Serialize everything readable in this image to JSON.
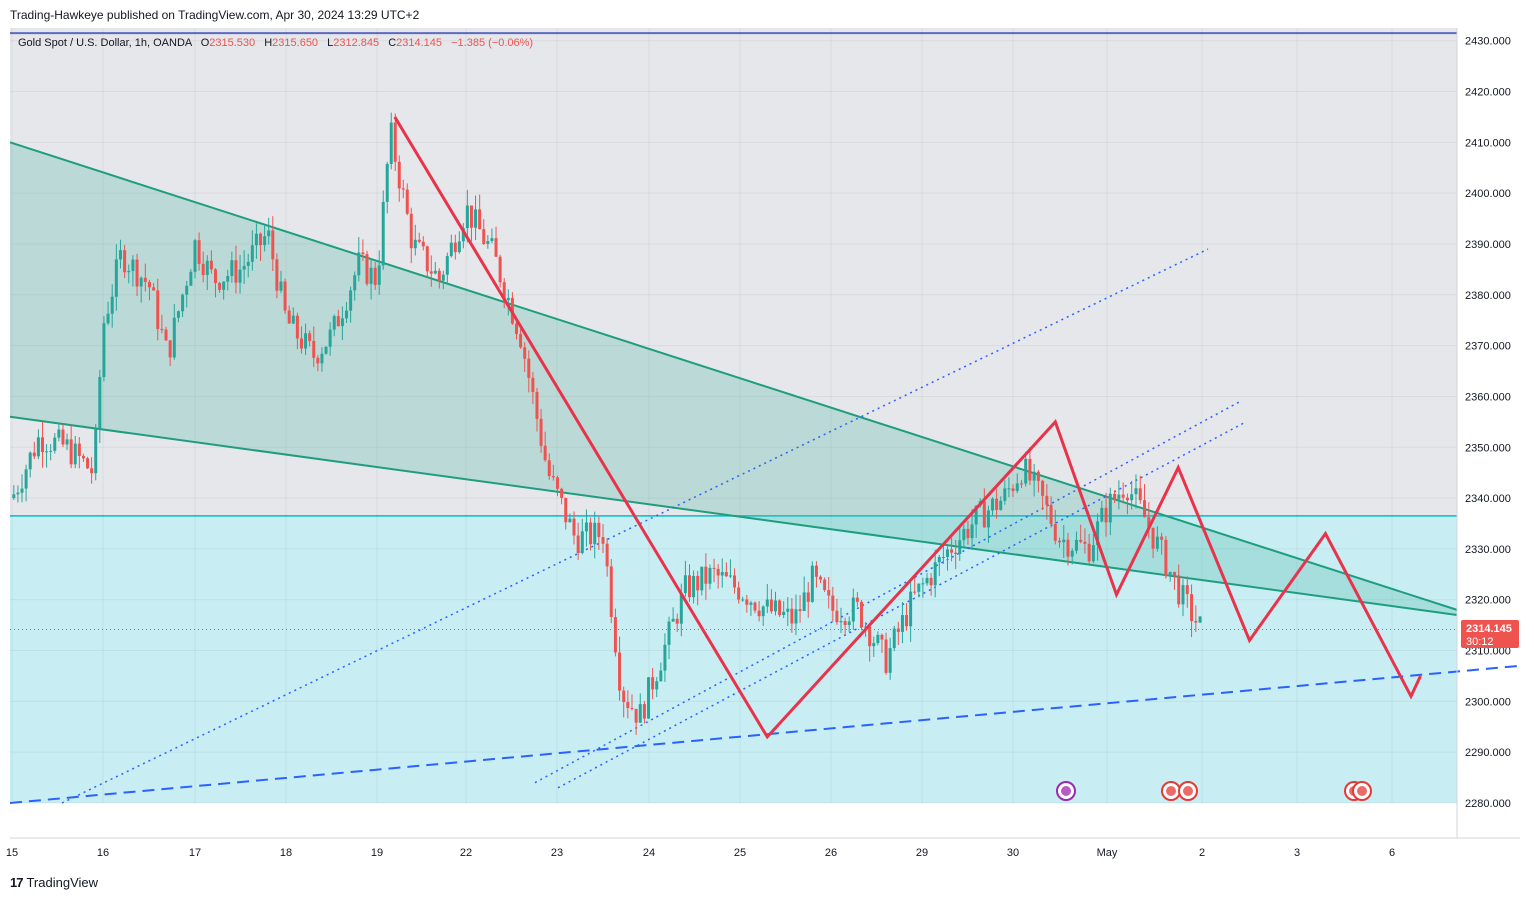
{
  "publisher_line": "Trading-Hawkeye published on TradingView.com, Apr 30, 2024 13:29 UTC+2",
  "brand": "TradingView",
  "symbol_line": {
    "symbol": "Gold Spot / U.S. Dollar, 1h, OANDA",
    "open_label": "O",
    "open": "2315.530",
    "high_label": "H",
    "high": "2315.650",
    "low_label": "L",
    "low": "2312.845",
    "close_label": "C",
    "close": "2314.145",
    "change": "−1.385 (−0.06%)"
  },
  "price_badge": {
    "price": "2314.145",
    "countdown": "30:12"
  },
  "colors": {
    "up": "#26a69a",
    "down": "#ef5350",
    "zone_fill": "#c8eef4",
    "zone_line": "#00bcd4",
    "wedge_fill": "#4db6a0",
    "wedge_line": "#1e9e7e",
    "projection": "#e8334a",
    "channel": "#2962ff",
    "background_upper": "#e6e7eb",
    "top_line": "#5c6bc0"
  },
  "chart_data": {
    "type": "candlestick",
    "symbol": "Gold Spot / U.S. Dollar",
    "interval": "1h",
    "ylim": [
      2280,
      2430
    ],
    "y_ticks": [
      "2430.000",
      "2420.000",
      "2410.000",
      "2400.000",
      "2390.000",
      "2380.000",
      "2370.000",
      "2360.000",
      "2350.000",
      "2340.000",
      "2330.000",
      "2320.000",
      "2310.000",
      "2300.000",
      "2290.000",
      "2280.000"
    ],
    "x_ticks": [
      "15",
      "16",
      "17",
      "18",
      "19",
      "22",
      "23",
      "24",
      "25",
      "26",
      "29",
      "30",
      "May",
      "2",
      "3",
      "6"
    ],
    "last_price": 2314.145,
    "support_zone": {
      "from": 2280,
      "to": 2336.5
    },
    "resistance_top_line": 2431.5,
    "price_path": [
      {
        "x": 15.0,
        "y": 2340
      },
      {
        "x": 15.3,
        "y": 2352
      },
      {
        "x": 15.6,
        "y": 2350
      },
      {
        "x": 15.9,
        "y": 2345
      },
      {
        "x": 16.0,
        "y": 2374
      },
      {
        "x": 16.2,
        "y": 2388
      },
      {
        "x": 16.5,
        "y": 2382
      },
      {
        "x": 16.7,
        "y": 2368
      },
      {
        "x": 17.0,
        "y": 2390
      },
      {
        "x": 17.2,
        "y": 2383
      },
      {
        "x": 17.5,
        "y": 2385
      },
      {
        "x": 17.8,
        "y": 2392
      },
      {
        "x": 18.0,
        "y": 2375
      },
      {
        "x": 18.3,
        "y": 2368
      },
      {
        "x": 18.5,
        "y": 2372
      },
      {
        "x": 18.8,
        "y": 2386
      },
      {
        "x": 19.0,
        "y": 2383
      },
      {
        "x": 19.15,
        "y": 2412
      },
      {
        "x": 19.4,
        "y": 2390
      },
      {
        "x": 19.7,
        "y": 2383
      },
      {
        "x": 20.0,
        "y": 2397
      },
      {
        "x": 20.3,
        "y": 2388
      },
      {
        "x": 20.6,
        "y": 2372
      },
      {
        "x": 20.9,
        "y": 2345
      },
      {
        "x": 21.2,
        "y": 2332
      },
      {
        "x": 21.5,
        "y": 2333
      },
      {
        "x": 21.7,
        "y": 2302
      },
      {
        "x": 21.9,
        "y": 2297
      },
      {
        "x": 22.1,
        "y": 2307
      },
      {
        "x": 22.4,
        "y": 2322
      },
      {
        "x": 22.7,
        "y": 2325
      },
      {
        "x": 23.0,
        "y": 2322
      },
      {
        "x": 23.3,
        "y": 2318
      },
      {
        "x": 23.6,
        "y": 2316
      },
      {
        "x": 23.8,
        "y": 2324
      },
      {
        "x": 24.0,
        "y": 2318
      },
      {
        "x": 24.3,
        "y": 2318
      },
      {
        "x": 24.6,
        "y": 2308
      },
      {
        "x": 24.9,
        "y": 2320
      },
      {
        "x": 25.1,
        "y": 2325
      },
      {
        "x": 25.3,
        "y": 2330
      },
      {
        "x": 25.6,
        "y": 2336
      },
      {
        "x": 25.9,
        "y": 2340
      },
      {
        "x": 26.1,
        "y": 2346
      },
      {
        "x": 26.3,
        "y": 2340
      },
      {
        "x": 26.5,
        "y": 2332
      },
      {
        "x": 26.8,
        "y": 2330
      },
      {
        "x": 27.0,
        "y": 2338
      },
      {
        "x": 27.2,
        "y": 2343
      },
      {
        "x": 27.4,
        "y": 2336
      },
      {
        "x": 27.6,
        "y": 2328
      },
      {
        "x": 27.8,
        "y": 2320
      },
      {
        "x": 28.0,
        "y": 2314
      }
    ],
    "projection_path": [
      {
        "x": 19.2,
        "y": 2415
      },
      {
        "x": 23.3,
        "y": 2293
      },
      {
        "x": 26.45,
        "y": 2355
      },
      {
        "x": 27.1,
        "y": 2321
      },
      {
        "x": 27.75,
        "y": 2346
      },
      {
        "x": 28.5,
        "y": 2312
      },
      {
        "x": 29.3,
        "y": 2333
      },
      {
        "x": 30.2,
        "y": 2301
      },
      {
        "x": 30.3,
        "y": 2305
      }
    ],
    "annotations": [
      "descending wedge",
      "rising channel",
      "support zone",
      "projected path"
    ]
  }
}
